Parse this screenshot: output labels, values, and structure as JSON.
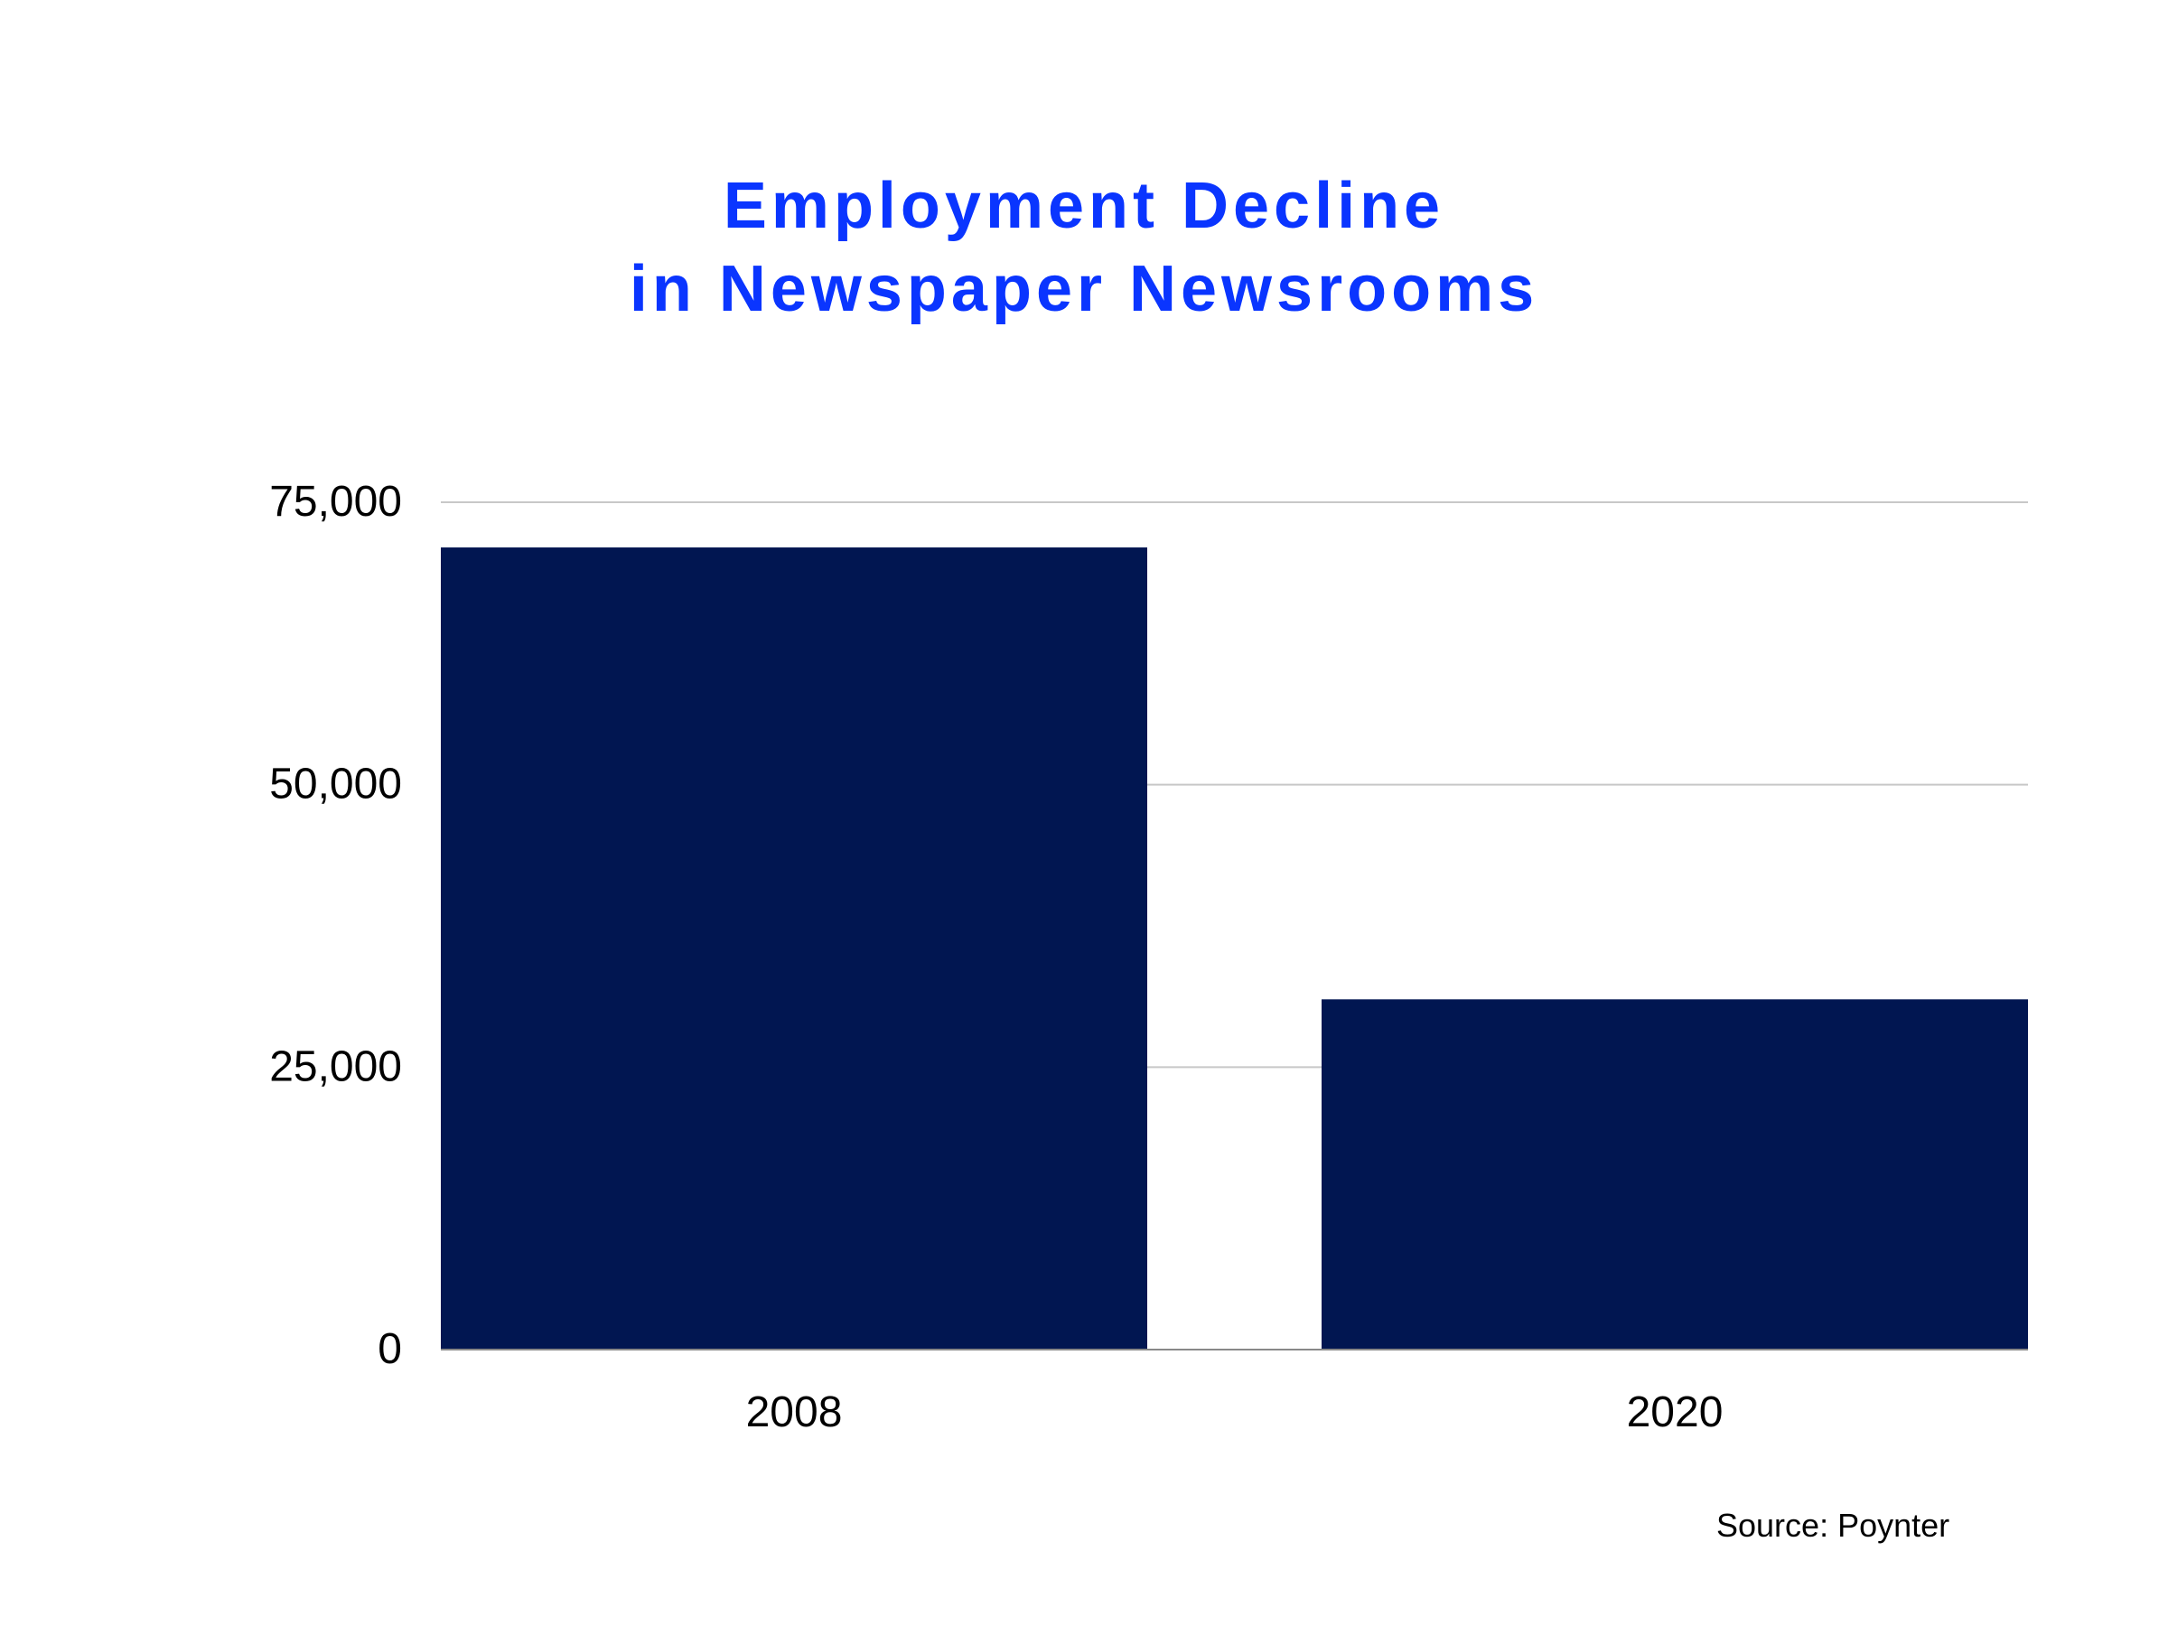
{
  "chart_data": {
    "type": "bar",
    "title_lines": [
      "Employment Decline",
      "in Newspaper Newsrooms"
    ],
    "categories": [
      "2008",
      "2020"
    ],
    "values": [
      71000,
      31000
    ],
    "yticks": [
      0,
      25000,
      50000,
      75000
    ],
    "ytick_labels": [
      "0",
      "25,000",
      "50,000",
      "75,000"
    ],
    "ylim": [
      0,
      75000
    ],
    "grid": true,
    "xlabel": "",
    "ylabel": "",
    "source": "Source: Poynter",
    "colors": {
      "bar": "#011651",
      "title": "#0a35ff",
      "grid": "#c8c8c8",
      "axis": "#888888",
      "text": "#000000"
    }
  }
}
